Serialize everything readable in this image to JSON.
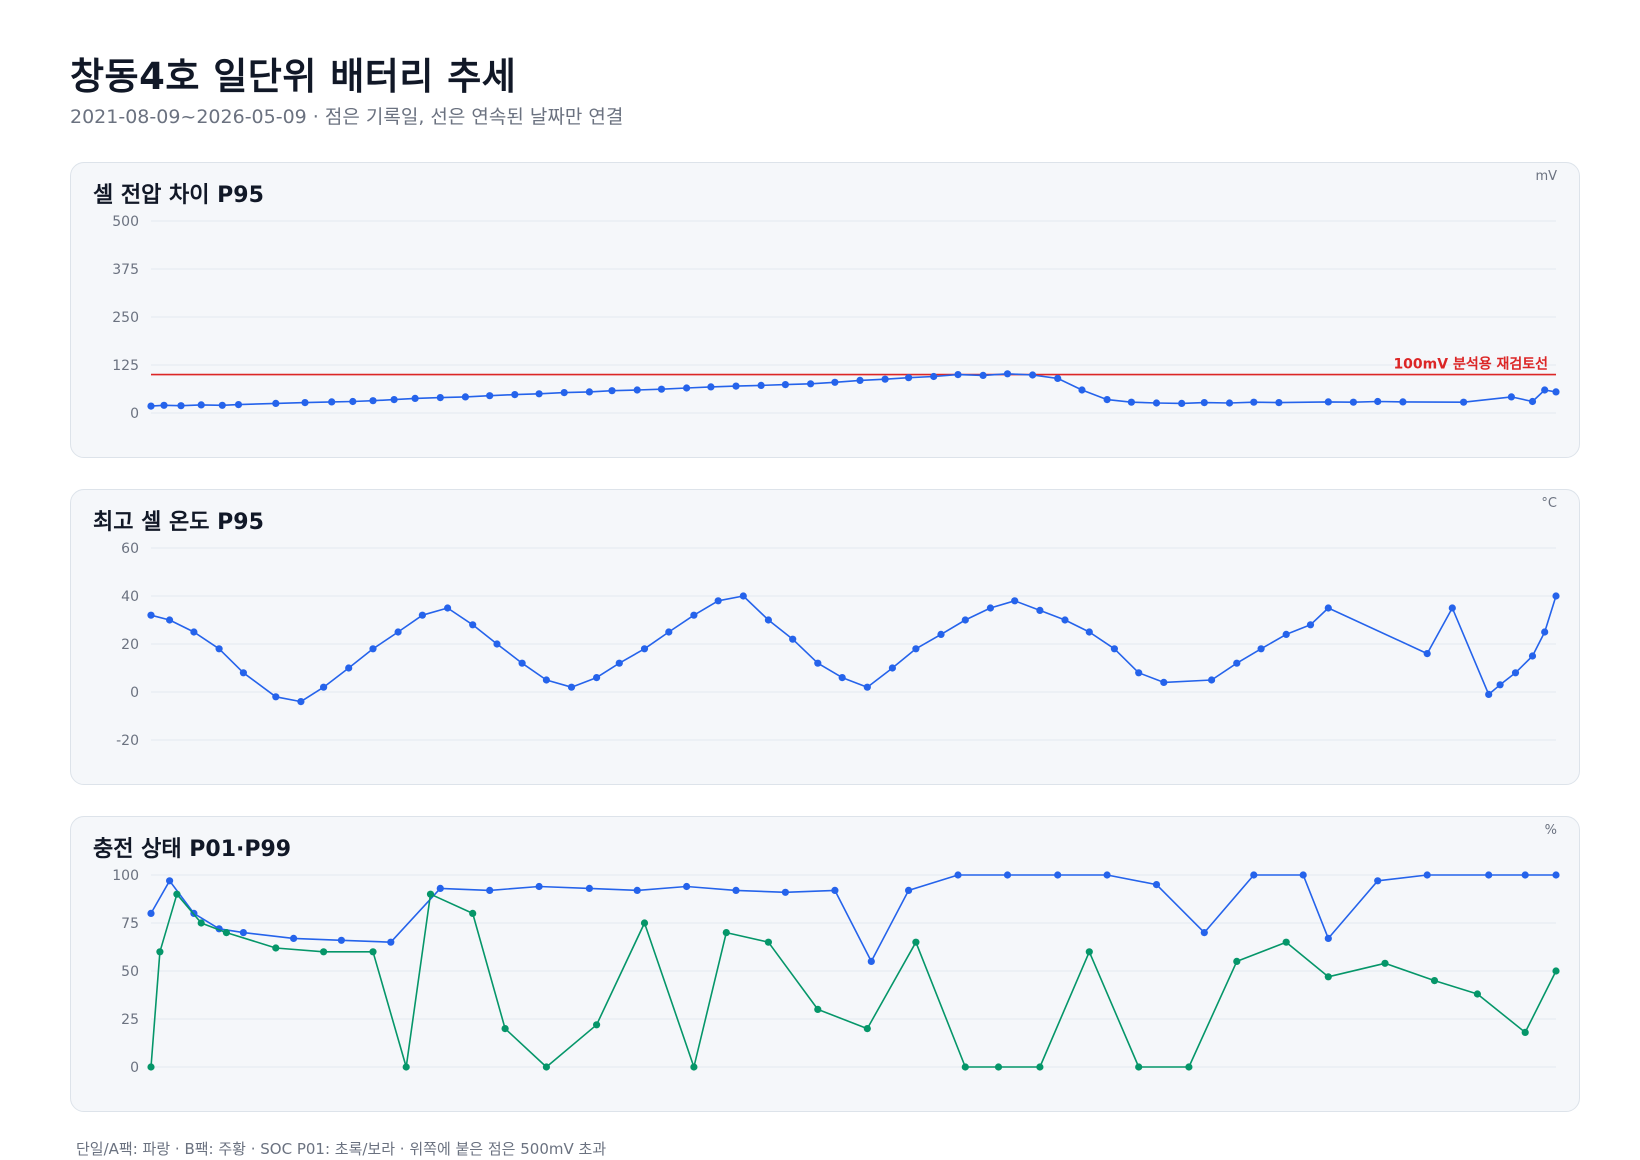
{
  "header": {
    "title": "창동4호 일단위 배터리 추세",
    "subtitle": "2021-08-09~2026-05-09 · 점은 기록일, 선은 연속된 날짜만 연결"
  },
  "footnote": "단일/A팩: 파랑 · B팩: 주황 · SOC P01: 초록/보라 · 위쪽에 붙은 점은 500mV 초과",
  "colors": {
    "series_primary": "#2563eb",
    "series_secondary": "#059669",
    "reference_line": "#dc2626",
    "grid": "#e2e8f0",
    "panel_bg": "#f5f7fa"
  },
  "chart_data": [
    {
      "type": "line",
      "title": "셀 전압 차이 P95",
      "unit": "mV",
      "xlim": [
        "2021-08-09",
        "2026-05-09"
      ],
      "ylim": [
        0,
        500
      ],
      "yticks": [
        0,
        125,
        250,
        375,
        500
      ],
      "grid": true,
      "reference_line": {
        "value": 100,
        "label": "100mV 분석용 재검토선"
      },
      "series": [
        {
          "points": [
            [
              "2021-08-09",
              18
            ],
            [
              "2021-08-25",
              20
            ],
            [
              "2021-09-15",
              19
            ],
            [
              "2021-10-10",
              21
            ],
            [
              "2021-11-05",
              20
            ],
            [
              "2021-11-25",
              22
            ],
            [
              "2022-01-10",
              25
            ],
            [
              "2022-02-15",
              27
            ],
            [
              "2022-03-20",
              29
            ],
            [
              "2022-04-15",
              30
            ],
            [
              "2022-05-10",
              32
            ],
            [
              "2022-06-05",
              35
            ],
            [
              "2022-07-01",
              38
            ],
            [
              "2022-08-01",
              40
            ],
            [
              "2022-09-01",
              42
            ],
            [
              "2022-10-01",
              45
            ],
            [
              "2022-11-01",
              48
            ],
            [
              "2022-12-01",
              50
            ],
            [
              "2023-01-01",
              53
            ],
            [
              "2023-02-01",
              55
            ],
            [
              "2023-03-01",
              58
            ],
            [
              "2023-04-01",
              60
            ],
            [
              "2023-05-01",
              62
            ],
            [
              "2023-06-01",
              65
            ],
            [
              "2023-07-01",
              68
            ],
            [
              "2023-08-01",
              70
            ],
            [
              "2023-09-01",
              72
            ],
            [
              "2023-10-01",
              74
            ],
            [
              "2023-11-01",
              76
            ],
            [
              "2023-12-01",
              80
            ],
            [
              "2024-01-01",
              85
            ],
            [
              "2024-02-01",
              88
            ],
            [
              "2024-03-01",
              92
            ],
            [
              "2024-04-01",
              95
            ],
            [
              "2024-05-01",
              100
            ],
            [
              "2024-06-01",
              98
            ],
            [
              "2024-07-01",
              102
            ],
            [
              "2024-08-01",
              99
            ],
            [
              "2024-09-01",
              90
            ],
            [
              "2024-10-01",
              60
            ],
            [
              "2024-11-01",
              35
            ],
            [
              "2024-12-01",
              28
            ],
            [
              "2025-01-01",
              26
            ],
            [
              "2025-02-01",
              25
            ],
            [
              "2025-03-01",
              27
            ],
            [
              "2025-04-01",
              26
            ],
            [
              "2025-05-01",
              28
            ],
            [
              "2025-06-01",
              27
            ],
            [
              "2025-08-01",
              29
            ],
            [
              "2025-09-01",
              28
            ],
            [
              "2025-10-01",
              30
            ],
            [
              "2025-11-01",
              29
            ],
            [
              "2026-01-15",
              28
            ],
            [
              "2026-03-15",
              42
            ],
            [
              "2026-04-10",
              30
            ],
            [
              "2026-04-25",
              60
            ],
            [
              "2026-05-09",
              55
            ]
          ]
        }
      ]
    },
    {
      "type": "line",
      "title": "최고 셀 온도 P95",
      "unit": "°C",
      "xlim": [
        "2021-08-09",
        "2026-05-09"
      ],
      "ylim": [
        -20,
        60
      ],
      "yticks": [
        -20,
        0,
        20,
        40,
        60
      ],
      "grid": true,
      "series": [
        {
          "points": [
            [
              "2021-08-09",
              32
            ],
            [
              "2021-09-01",
              30
            ],
            [
              "2021-10-01",
              25
            ],
            [
              "2021-11-01",
              18
            ],
            [
              "2021-12-01",
              8
            ],
            [
              "2022-01-10",
              -2
            ],
            [
              "2022-02-10",
              -4
            ],
            [
              "2022-03-10",
              2
            ],
            [
              "2022-04-10",
              10
            ],
            [
              "2022-05-10",
              18
            ],
            [
              "2022-06-10",
              25
            ],
            [
              "2022-07-10",
              32
            ],
            [
              "2022-08-10",
              35
            ],
            [
              "2022-09-10",
              28
            ],
            [
              "2022-10-10",
              20
            ],
            [
              "2022-11-10",
              12
            ],
            [
              "2022-12-10",
              5
            ],
            [
              "2023-01-10",
              2
            ],
            [
              "2023-02-10",
              6
            ],
            [
              "2023-03-10",
              12
            ],
            [
              "2023-04-10",
              18
            ],
            [
              "2023-05-10",
              25
            ],
            [
              "2023-06-10",
              32
            ],
            [
              "2023-07-10",
              38
            ],
            [
              "2023-08-10",
              40
            ],
            [
              "2023-09-10",
              30
            ],
            [
              "2023-10-10",
              22
            ],
            [
              "2023-11-10",
              12
            ],
            [
              "2023-12-10",
              6
            ],
            [
              "2024-01-10",
              2
            ],
            [
              "2024-02-10",
              10
            ],
            [
              "2024-03-10",
              18
            ],
            [
              "2024-04-10",
              24
            ],
            [
              "2024-05-10",
              30
            ],
            [
              "2024-06-10",
              35
            ],
            [
              "2024-07-10",
              38
            ],
            [
              "2024-08-10",
              34
            ],
            [
              "2024-09-10",
              30
            ],
            [
              "2024-10-10",
              25
            ],
            [
              "2024-11-10",
              18
            ],
            [
              "2024-12-10",
              8
            ],
            [
              "2025-01-10",
              4
            ],
            [
              "2025-03-10",
              5
            ],
            [
              "2025-04-10",
              12
            ],
            [
              "2025-05-10",
              18
            ],
            [
              "2025-06-10",
              24
            ],
            [
              "2025-07-10",
              28
            ],
            [
              "2025-08-01",
              35
            ],
            [
              "2025-12-01",
              16
            ],
            [
              "2026-01-01",
              35
            ],
            [
              "2026-02-15",
              -1
            ],
            [
              "2026-03-01",
              3
            ],
            [
              "2026-03-20",
              8
            ],
            [
              "2026-04-10",
              15
            ],
            [
              "2026-04-25",
              25
            ],
            [
              "2026-05-09",
              40
            ]
          ]
        }
      ]
    },
    {
      "type": "line",
      "title": "충전 상태 P01·P99",
      "unit": "%",
      "xlim": [
        "2021-08-09",
        "2026-05-09"
      ],
      "ylim": [
        0,
        100
      ],
      "yticks": [
        0,
        25,
        50,
        75,
        100
      ],
      "grid": true,
      "series": [
        {
          "points": [
            [
              "2021-08-09",
              80
            ],
            [
              "2021-09-01",
              97
            ],
            [
              "2021-10-01",
              80
            ],
            [
              "2021-11-01",
              72
            ],
            [
              "2021-12-01",
              70
            ],
            [
              "2022-02-01",
              67
            ],
            [
              "2022-04-01",
              66
            ],
            [
              "2022-06-01",
              65
            ],
            [
              "2022-08-01",
              93
            ],
            [
              "2022-10-01",
              92
            ],
            [
              "2022-12-01",
              94
            ],
            [
              "2023-02-01",
              93
            ],
            [
              "2023-04-01",
              92
            ],
            [
              "2023-06-01",
              94
            ],
            [
              "2023-08-01",
              92
            ],
            [
              "2023-10-01",
              91
            ],
            [
              "2023-12-01",
              92
            ],
            [
              "2024-01-15",
              55
            ],
            [
              "2024-03-01",
              92
            ],
            [
              "2024-05-01",
              100
            ],
            [
              "2024-07-01",
              100
            ],
            [
              "2024-09-01",
              100
            ],
            [
              "2024-11-01",
              100
            ],
            [
              "2025-01-01",
              95
            ],
            [
              "2025-03-01",
              70
            ],
            [
              "2025-05-01",
              100
            ],
            [
              "2025-07-01",
              100
            ],
            [
              "2025-08-01",
              67
            ],
            [
              "2025-10-01",
              97
            ],
            [
              "2025-12-01",
              100
            ],
            [
              "2026-02-15",
              100
            ],
            [
              "2026-04-01",
              100
            ],
            [
              "2026-05-09",
              100
            ]
          ]
        },
        {
          "points": [
            [
              "2021-08-09",
              0
            ],
            [
              "2021-08-20",
              60
            ],
            [
              "2021-09-10",
              90
            ],
            [
              "2021-10-10",
              75
            ],
            [
              "2021-11-10",
              70
            ],
            [
              "2022-01-10",
              62
            ],
            [
              "2022-03-10",
              60
            ],
            [
              "2022-05-10",
              60
            ],
            [
              "2022-06-20",
              0
            ],
            [
              "2022-07-20",
              90
            ],
            [
              "2022-09-10",
              80
            ],
            [
              "2022-10-20",
              20
            ],
            [
              "2022-12-10",
              0
            ],
            [
              "2023-02-10",
              22
            ],
            [
              "2023-04-10",
              75
            ],
            [
              "2023-06-10",
              0
            ],
            [
              "2023-07-20",
              70
            ],
            [
              "2023-09-10",
              65
            ],
            [
              "2023-11-10",
              30
            ],
            [
              "2024-01-10",
              20
            ],
            [
              "2024-03-10",
              65
            ],
            [
              "2024-05-10",
              0
            ],
            [
              "2024-06-20",
              0
            ],
            [
              "2024-08-10",
              0
            ],
            [
              "2024-10-10",
              60
            ],
            [
              "2024-12-10",
              0
            ],
            [
              "2025-02-10",
              0
            ],
            [
              "2025-04-10",
              55
            ],
            [
              "2025-06-10",
              65
            ],
            [
              "2025-08-01",
              47
            ],
            [
              "2025-10-10",
              54
            ],
            [
              "2025-12-10",
              45
            ],
            [
              "2026-02-01",
              38
            ],
            [
              "2026-04-01",
              18
            ],
            [
              "2026-05-09",
              50
            ]
          ]
        }
      ]
    }
  ]
}
